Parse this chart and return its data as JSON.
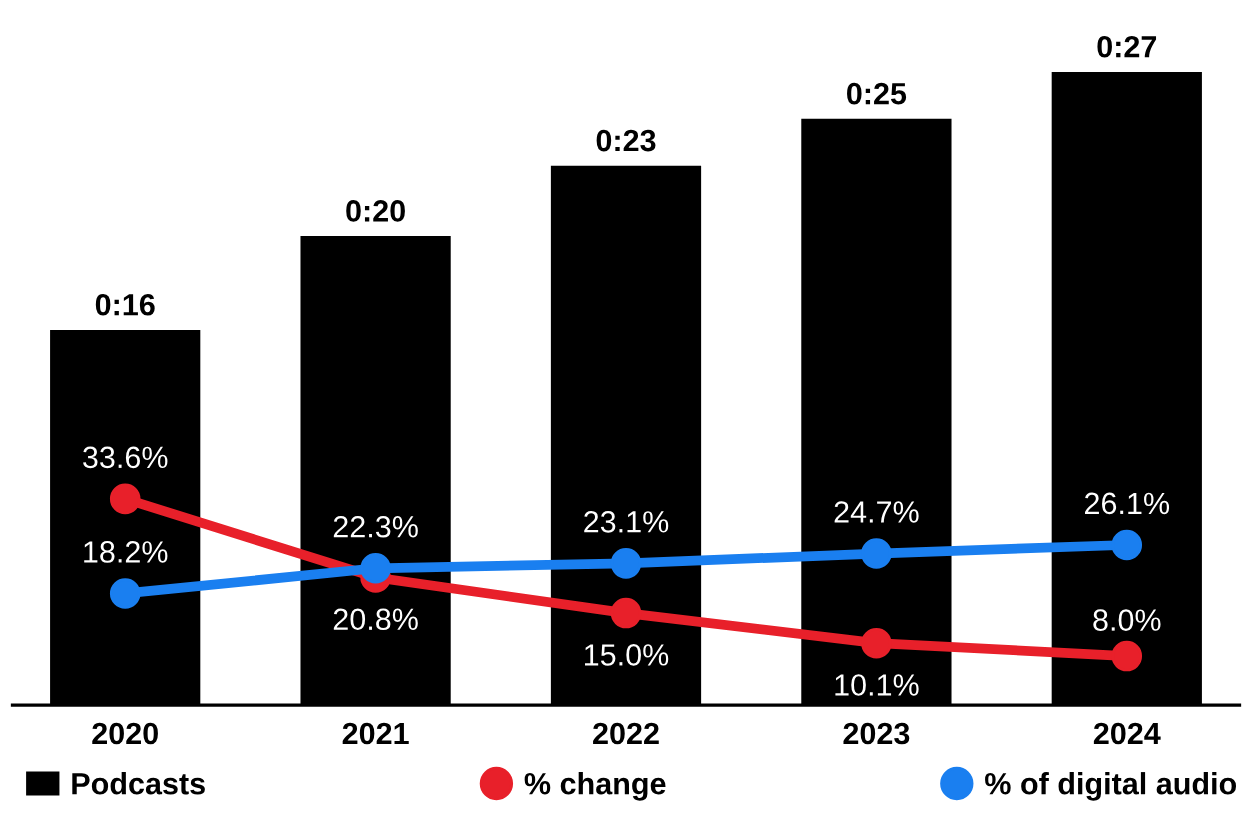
{
  "chart_data": {
    "type": "bar",
    "categories": [
      "2020",
      "2021",
      "2022",
      "2023",
      "2024"
    ],
    "tick_labels": "x",
    "legend": "bottom",
    "grid": false,
    "data_labels": true,
    "series": [
      {
        "name": "Podcasts",
        "color": "#000000",
        "values": [
          16,
          20,
          23,
          25,
          27
        ],
        "value_labels": [
          "0:16",
          "0:20",
          "0:23",
          "0:25",
          "0:27"
        ]
      },
      {
        "name": "% change",
        "type": "line",
        "axis": "y2",
        "color": "#e8202a",
        "marker": "circle",
        "values": [
          33.6,
          20.8,
          15.0,
          10.1,
          8.0
        ],
        "value_labels": [
          "33.6%",
          "20.8%",
          "15.0%",
          "10.1%",
          "8.0%"
        ]
      },
      {
        "name": "% of digital audio",
        "type": "line",
        "axis": "y2",
        "color": "#1a7ff0",
        "marker": "circle",
        "values": [
          18.2,
          22.3,
          23.1,
          24.7,
          26.1
        ],
        "value_labels": [
          "18.2%",
          "22.3%",
          "23.1%",
          "24.7%",
          "26.1%"
        ]
      }
    ]
  }
}
